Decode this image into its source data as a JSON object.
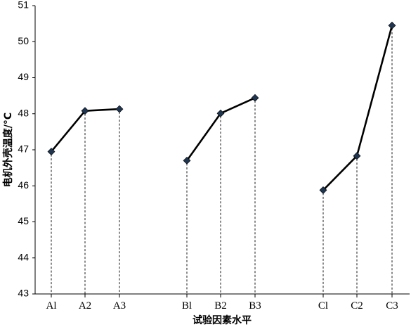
{
  "chart_data": {
    "type": "line",
    "xlabel": "试验因素水平",
    "ylabel": "电机外壳温度/°C",
    "ylim": [
      43,
      51
    ],
    "yticks": [
      43,
      44,
      45,
      46,
      47,
      48,
      49,
      50,
      51
    ],
    "grid": false,
    "legend": "none",
    "drop_lines": true,
    "groups": [
      {
        "categories": [
          "Al",
          "A2",
          "A3"
        ],
        "values": [
          46.95,
          48.08,
          48.13
        ]
      },
      {
        "categories": [
          "Bl",
          "B2",
          "B3"
        ],
        "values": [
          46.7,
          48.01,
          48.44
        ]
      },
      {
        "categories": [
          "Cl",
          "C2",
          "C3"
        ],
        "values": [
          45.88,
          46.83,
          50.45
        ]
      }
    ],
    "colors": {
      "line": "#000000",
      "marker": "#1f3550"
    }
  }
}
